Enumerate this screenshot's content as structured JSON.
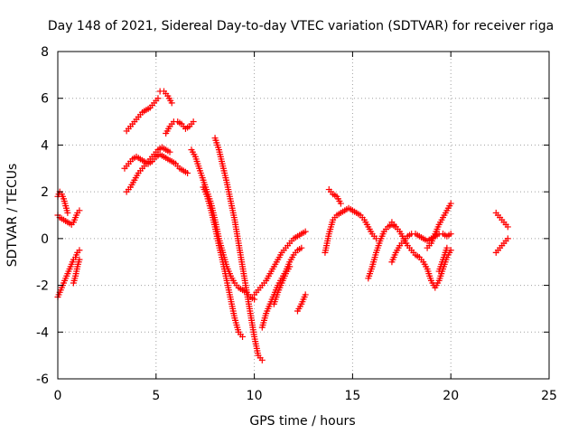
{
  "chart_data": {
    "type": "scatter",
    "title": "Day 148 of 2021, Sidereal Day-to-day VTEC variation (SDTVAR) for receiver riga",
    "xlabel": "GPS time / hours",
    "ylabel": "SDTVAR / TECUs",
    "xlim": [
      0,
      25
    ],
    "ylim": [
      -6,
      8
    ],
    "xticks": [
      "0",
      "5",
      "10",
      "15",
      "20",
      "25"
    ],
    "yticks": [
      "-6",
      "-4",
      "-2",
      "0",
      "2",
      "4",
      "6",
      "8"
    ],
    "grid": true,
    "marker": "+",
    "color": "#ff0000",
    "series": [
      {
        "name": "s1",
        "x": [
          0.0,
          0.1,
          0.2,
          0.3,
          0.4,
          0.5,
          0.6,
          0.7,
          0.8,
          0.9,
          1.0,
          1.1
        ],
        "y": [
          1.0,
          0.9,
          0.85,
          0.8,
          0.75,
          0.7,
          0.65,
          0.6,
          0.7,
          0.9,
          1.1,
          1.2
        ]
      },
      {
        "name": "s2",
        "x": [
          0.0,
          0.1,
          0.2,
          0.3,
          0.4,
          0.5
        ],
        "y": [
          1.8,
          2.0,
          1.9,
          1.7,
          1.4,
          1.1
        ]
      },
      {
        "name": "s3",
        "x": [
          0.0,
          0.1,
          0.2,
          0.3,
          0.4,
          0.5,
          0.6,
          0.7,
          0.8,
          0.9,
          1.0,
          1.1
        ],
        "y": [
          -2.5,
          -2.3,
          -2.1,
          -1.9,
          -1.7,
          -1.5,
          -1.3,
          -1.1,
          -0.9,
          -0.8,
          -0.6,
          -0.5
        ]
      },
      {
        "name": "s4",
        "x": [
          0.8,
          0.9,
          1.0,
          1.1
        ],
        "y": [
          -1.9,
          -1.6,
          -1.2,
          -0.9
        ]
      },
      {
        "name": "s5",
        "x": [
          3.5,
          3.7,
          3.9,
          4.1,
          4.3,
          4.5,
          4.7,
          4.9,
          5.1
        ],
        "y": [
          4.6,
          4.8,
          5.0,
          5.2,
          5.4,
          5.5,
          5.6,
          5.8,
          6.0
        ]
      },
      {
        "name": "s6",
        "x": [
          3.4,
          3.6,
          3.8,
          4.0,
          4.2,
          4.4,
          4.6,
          4.8,
          5.0,
          5.2,
          5.4,
          5.6,
          5.8,
          6.0,
          6.2,
          6.4,
          6.6
        ],
        "y": [
          3.0,
          3.2,
          3.4,
          3.5,
          3.4,
          3.3,
          3.2,
          3.3,
          3.5,
          3.6,
          3.5,
          3.4,
          3.3,
          3.2,
          3.0,
          2.9,
          2.8
        ]
      },
      {
        "name": "s7",
        "x": [
          3.5,
          3.7,
          3.9,
          4.1,
          4.3,
          4.5,
          4.7,
          4.9,
          5.1,
          5.3,
          5.5,
          5.7
        ],
        "y": [
          2.0,
          2.2,
          2.5,
          2.8,
          3.0,
          3.2,
          3.4,
          3.6,
          3.8,
          3.9,
          3.8,
          3.7
        ]
      },
      {
        "name": "s8",
        "x": [
          5.5,
          5.7,
          5.9,
          6.1,
          6.3,
          6.5,
          6.7,
          6.9
        ],
        "y": [
          4.5,
          4.8,
          5.0,
          5.0,
          4.9,
          4.7,
          4.8,
          5.0
        ]
      },
      {
        "name": "s9",
        "x": [
          5.2,
          5.4,
          5.6,
          5.8
        ],
        "y": [
          6.3,
          6.3,
          6.1,
          5.8
        ]
      },
      {
        "name": "s10",
        "x": [
          6.8,
          7.0,
          7.2,
          7.4,
          7.6,
          7.8,
          8.0,
          8.2,
          8.4,
          8.6,
          8.8,
          9.0,
          9.2,
          9.4,
          9.6,
          9.8,
          10.0
        ],
        "y": [
          3.8,
          3.5,
          3.0,
          2.5,
          2.0,
          1.5,
          0.8,
          0.0,
          -0.6,
          -1.2,
          -1.6,
          -1.9,
          -2.1,
          -2.2,
          -2.3,
          -2.5,
          -2.6
        ]
      },
      {
        "name": "s11",
        "x": [
          7.4,
          7.6,
          7.8,
          8.0,
          8.2,
          8.4,
          8.6,
          8.8,
          9.0,
          9.2,
          9.4
        ],
        "y": [
          2.2,
          1.8,
          1.2,
          0.5,
          -0.3,
          -1.0,
          -1.8,
          -2.6,
          -3.4,
          -4.0,
          -4.2
        ]
      },
      {
        "name": "s12",
        "x": [
          8.0,
          8.2,
          8.4,
          8.6,
          8.8,
          9.0,
          9.2,
          9.4,
          9.6,
          9.8,
          10.0,
          10.2,
          10.4
        ],
        "y": [
          4.3,
          3.8,
          3.1,
          2.4,
          1.6,
          0.8,
          -0.2,
          -1.2,
          -2.2,
          -3.2,
          -4.2,
          -5.0,
          -5.2
        ]
      },
      {
        "name": "s13",
        "x": [
          10.0,
          10.2,
          10.4,
          10.6,
          10.8,
          11.0,
          11.2,
          11.4,
          11.6,
          11.8,
          12.0,
          12.2,
          12.4,
          12.6
        ],
        "y": [
          -2.4,
          -2.2,
          -2.0,
          -1.8,
          -1.5,
          -1.2,
          -0.9,
          -0.6,
          -0.4,
          -0.2,
          0.0,
          0.1,
          0.2,
          0.3
        ]
      },
      {
        "name": "s14",
        "x": [
          10.4,
          10.6,
          10.8,
          11.0,
          11.2,
          11.4,
          11.6,
          11.8,
          12.0,
          12.2,
          12.4
        ],
        "y": [
          -3.8,
          -3.2,
          -2.8,
          -2.4,
          -2.0,
          -1.7,
          -1.4,
          -1.0,
          -0.7,
          -0.5,
          -0.4
        ]
      },
      {
        "name": "s15",
        "x": [
          11.0,
          11.2,
          11.4,
          11.6,
          11.8
        ],
        "y": [
          -2.8,
          -2.3,
          -1.9,
          -1.5,
          -1.2
        ]
      },
      {
        "name": "s16",
        "x": [
          12.2,
          12.4,
          12.6
        ],
        "y": [
          -3.1,
          -2.8,
          -2.4
        ]
      },
      {
        "name": "s17",
        "x": [
          13.6,
          13.8,
          14.0,
          14.2,
          14.4,
          14.6,
          14.8,
          15.0,
          15.2,
          15.4,
          15.6,
          15.8,
          16.0,
          16.2
        ],
        "y": [
          -0.6,
          0.2,
          0.8,
          1.0,
          1.1,
          1.2,
          1.3,
          1.2,
          1.1,
          1.0,
          0.8,
          0.5,
          0.2,
          0.0
        ]
      },
      {
        "name": "s18",
        "x": [
          13.8,
          14.0,
          14.2,
          14.4
        ],
        "y": [
          2.1,
          1.9,
          1.8,
          1.5
        ]
      },
      {
        "name": "s19",
        "x": [
          15.8,
          16.0,
          16.2,
          16.4,
          16.6,
          16.8,
          17.0,
          17.2
        ],
        "y": [
          -1.7,
          -1.2,
          -0.6,
          -0.1,
          0.3,
          0.5,
          0.6,
          0.5
        ]
      },
      {
        "name": "s20",
        "x": [
          17.0,
          17.2,
          17.4,
          17.6,
          17.8,
          18.0,
          18.2,
          18.4,
          18.6,
          18.8,
          19.0,
          19.2,
          19.4,
          19.6,
          19.8,
          20.0
        ],
        "y": [
          -1.0,
          -0.6,
          -0.3,
          -0.1,
          0.1,
          0.2,
          0.2,
          0.1,
          0.0,
          -0.1,
          0.0,
          0.1,
          0.2,
          0.2,
          0.1,
          0.2
        ]
      },
      {
        "name": "s21",
        "x": [
          17.0,
          17.2,
          17.4,
          17.6,
          17.8,
          18.0,
          18.2,
          18.4,
          18.6,
          18.8,
          19.0,
          19.2,
          19.4,
          19.6,
          19.8,
          20.0
        ],
        "y": [
          0.7,
          0.5,
          0.3,
          0.0,
          -0.3,
          -0.5,
          -0.7,
          -0.8,
          -1.0,
          -1.3,
          -1.8,
          -2.1,
          -1.8,
          -1.3,
          -0.8,
          -0.5
        ]
      },
      {
        "name": "s22",
        "x": [
          18.8,
          19.0,
          19.2,
          19.4,
          19.6,
          19.8,
          20.0
        ],
        "y": [
          -0.4,
          -0.2,
          0.2,
          0.6,
          0.9,
          1.2,
          1.5
        ]
      },
      {
        "name": "s23",
        "x": [
          19.4,
          19.6,
          19.8
        ],
        "y": [
          -1.4,
          -0.9,
          -0.4
        ]
      },
      {
        "name": "s24",
        "x": [
          22.3,
          22.5,
          22.7,
          22.9
        ],
        "y": [
          1.1,
          0.9,
          0.7,
          0.5
        ]
      },
      {
        "name": "s25",
        "x": [
          22.3,
          22.5,
          22.7,
          22.9
        ],
        "y": [
          -0.6,
          -0.4,
          -0.2,
          0.0
        ]
      }
    ]
  }
}
